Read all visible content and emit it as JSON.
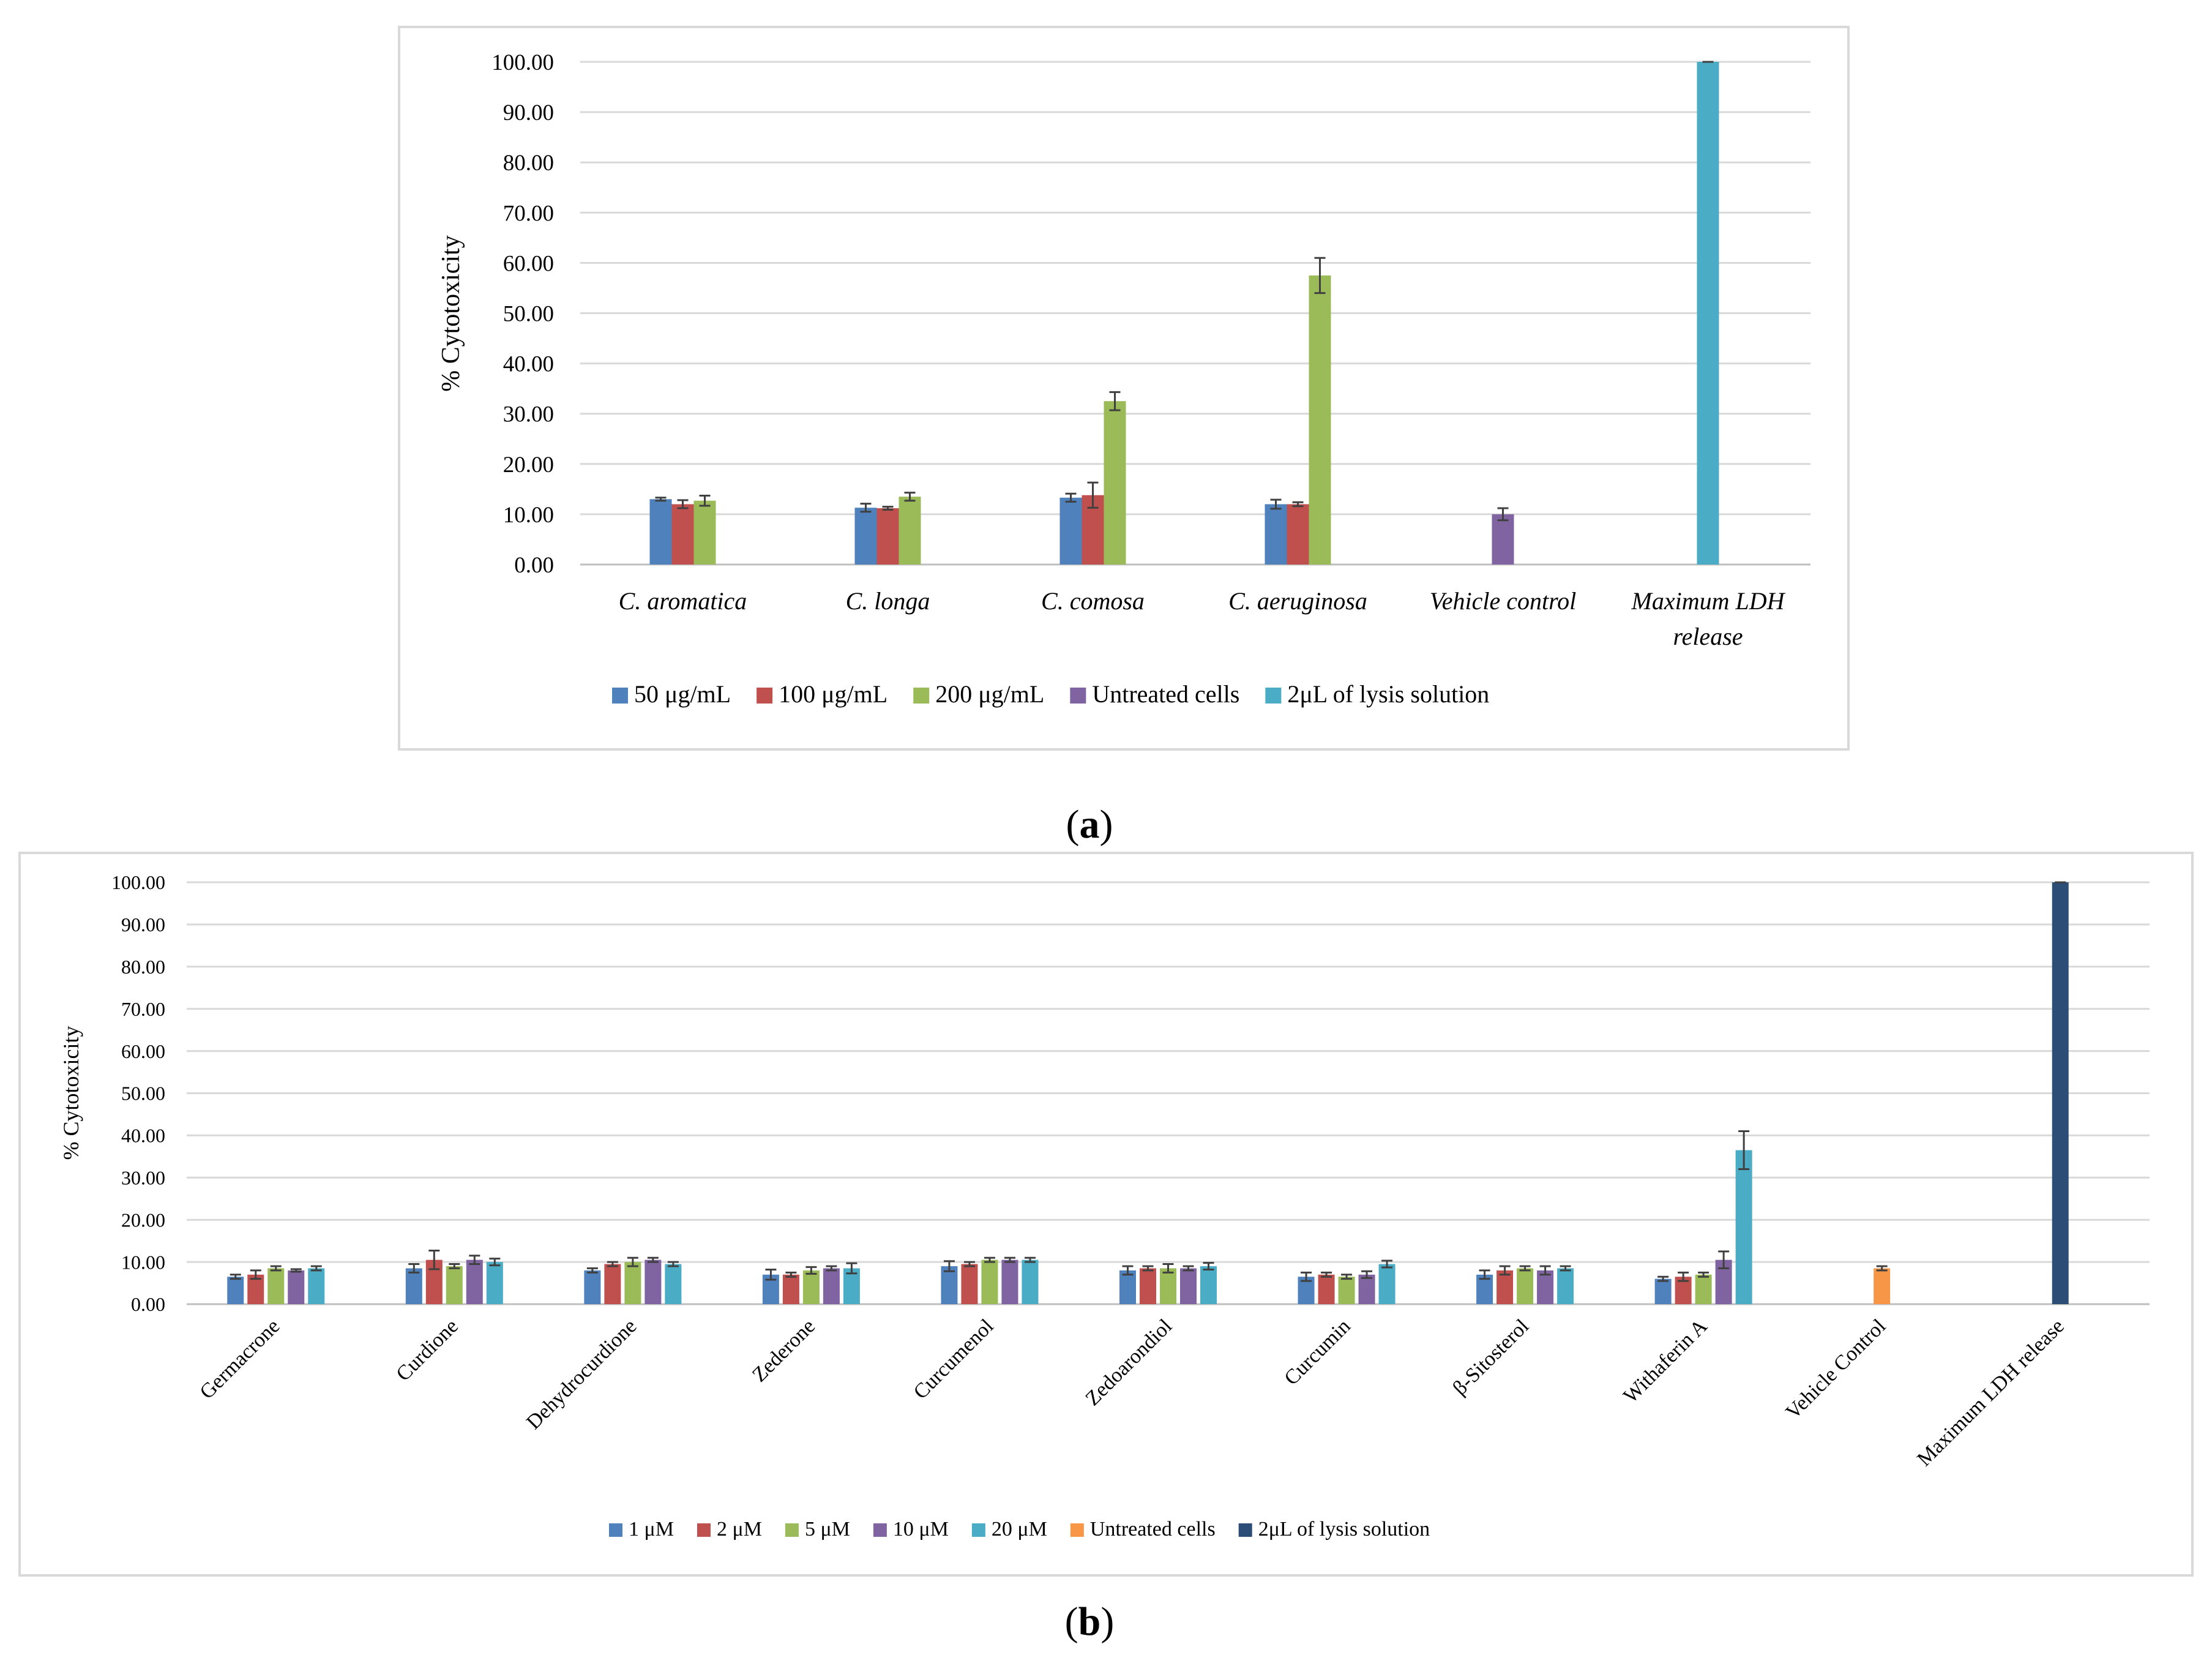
{
  "panel_a": {
    "label_open": "(",
    "label_letter": "a",
    "label_close": ")"
  },
  "panel_b": {
    "label_open": "(",
    "label_letter": "b",
    "label_close": ")"
  },
  "colors": {
    "blue": "#4F81BD",
    "red": "#C0504D",
    "green": "#9BBB59",
    "purple": "#8064A2",
    "cyan": "#4BACC6",
    "orange": "#F79646",
    "navy": "#2C4D75",
    "grid": "#D9D9D9",
    "axis": "#BFBFBF",
    "frame": "#D9D9D9",
    "errorbar": "#404040"
  },
  "chart_data": [
    {
      "id": "a",
      "type": "bar",
      "title": "",
      "xlabel": "",
      "ylabel": "% Cytotoxicity",
      "ylim": [
        0,
        100
      ],
      "yticks": [
        "0.00",
        "10.00",
        "20.00",
        "30.00",
        "40.00",
        "50.00",
        "60.00",
        "70.00",
        "80.00",
        "90.00",
        "100.00"
      ],
      "grid": true,
      "legend_position": "bottom",
      "categories": [
        [
          "C. aromatica"
        ],
        [
          "C. longa"
        ],
        [
          "C. comosa"
        ],
        [
          "C. aeruginosa"
        ],
        [
          "Vehicle control"
        ],
        [
          "Maximum LDH",
          "release"
        ]
      ],
      "series": [
        {
          "name": "50 μg/mL",
          "color": "#4F81BD",
          "values": [
            13.0,
            11.3,
            13.3,
            12.0,
            null,
            null
          ],
          "errors": [
            0.3,
            0.8,
            0.8,
            0.9,
            null,
            null
          ]
        },
        {
          "name": "100 μg/mL",
          "color": "#C0504D",
          "values": [
            12.0,
            11.2,
            13.8,
            12.0,
            null,
            null
          ],
          "errors": [
            0.8,
            0.3,
            2.5,
            0.4,
            null,
            null
          ]
        },
        {
          "name": "200 μg/mL",
          "color": "#9BBB59",
          "values": [
            12.7,
            13.5,
            32.5,
            57.5,
            null,
            null
          ],
          "errors": [
            1.0,
            0.8,
            1.8,
            3.5,
            null,
            null
          ]
        },
        {
          "name": "Untreated cells",
          "color": "#8064A2",
          "values": [
            null,
            null,
            null,
            null,
            10.0,
            null
          ],
          "errors": [
            null,
            null,
            null,
            null,
            1.2,
            null
          ]
        },
        {
          "name": "2μL of lysis solution",
          "color": "#4BACC6",
          "values": [
            null,
            null,
            null,
            null,
            null,
            100.0
          ],
          "errors": [
            null,
            null,
            null,
            null,
            null,
            0.0
          ]
        }
      ]
    },
    {
      "id": "b",
      "type": "bar",
      "title": "",
      "xlabel": "",
      "ylabel": "% Cytotoxicity",
      "ylim": [
        0,
        100
      ],
      "yticks": [
        "0.00",
        "10.00",
        "20.00",
        "30.00",
        "40.00",
        "50.00",
        "60.00",
        "70.00",
        "80.00",
        "90.00",
        "100.00"
      ],
      "grid": true,
      "legend_position": "bottom",
      "categories": [
        [
          "Germacrone"
        ],
        [
          "Curdione"
        ],
        [
          "Dehydrocurdione"
        ],
        [
          "Zederone"
        ],
        [
          "Curcumenol"
        ],
        [
          "Zedoarondiol"
        ],
        [
          "Curcumin"
        ],
        [
          "β-Sitosterol"
        ],
        [
          "Withaferin A"
        ],
        [
          "Vehicle Control"
        ],
        [
          "Maximum LDH release"
        ]
      ],
      "series": [
        {
          "name": "1 μM",
          "color": "#4F81BD",
          "values": [
            6.5,
            8.5,
            8.0,
            7.0,
            9.0,
            8.0,
            6.5,
            7.0,
            6.0,
            null,
            null
          ],
          "errors": [
            0.5,
            1.0,
            0.5,
            1.2,
            1.2,
            1.0,
            1.0,
            1.0,
            0.5,
            null,
            null
          ]
        },
        {
          "name": "2 μM",
          "color": "#C0504D",
          "values": [
            7.0,
            10.5,
            9.5,
            7.0,
            9.5,
            8.5,
            7.0,
            8.0,
            6.5,
            null,
            null
          ],
          "errors": [
            1.0,
            2.2,
            0.5,
            0.5,
            0.5,
            0.5,
            0.5,
            1.0,
            1.0,
            null,
            null
          ]
        },
        {
          "name": "5 μM",
          "color": "#9BBB59",
          "values": [
            8.5,
            9.0,
            10.0,
            8.0,
            10.5,
            8.5,
            6.5,
            8.5,
            7.0,
            null,
            null
          ],
          "errors": [
            0.5,
            0.5,
            1.0,
            0.8,
            0.5,
            1.0,
            0.5,
            0.5,
            0.5,
            null,
            null
          ]
        },
        {
          "name": "10 μM",
          "color": "#8064A2",
          "values": [
            8.0,
            10.5,
            10.5,
            8.5,
            10.5,
            8.5,
            7.0,
            8.0,
            10.5,
            null,
            null
          ],
          "errors": [
            0.3,
            1.0,
            0.5,
            0.5,
            0.5,
            0.5,
            0.8,
            1.0,
            2.0,
            null,
            null
          ]
        },
        {
          "name": "20 μM",
          "color": "#4BACC6",
          "values": [
            8.5,
            10.0,
            9.5,
            8.5,
            10.5,
            9.0,
            9.5,
            8.5,
            36.5,
            null,
            null
          ],
          "errors": [
            0.5,
            0.8,
            0.5,
            1.2,
            0.5,
            0.8,
            0.8,
            0.5,
            4.5,
            null,
            null
          ]
        },
        {
          "name": "Untreated cells",
          "color": "#F79646",
          "values": [
            null,
            null,
            null,
            null,
            null,
            null,
            null,
            null,
            null,
            8.5,
            null
          ],
          "errors": [
            null,
            null,
            null,
            null,
            null,
            null,
            null,
            null,
            null,
            0.5,
            null
          ]
        },
        {
          "name": "2μL of lysis solution",
          "color": "#2C4D75",
          "values": [
            null,
            null,
            null,
            null,
            null,
            null,
            null,
            null,
            null,
            null,
            100.0
          ],
          "errors": [
            null,
            null,
            null,
            null,
            null,
            null,
            null,
            null,
            null,
            null,
            0.0
          ]
        }
      ]
    }
  ]
}
